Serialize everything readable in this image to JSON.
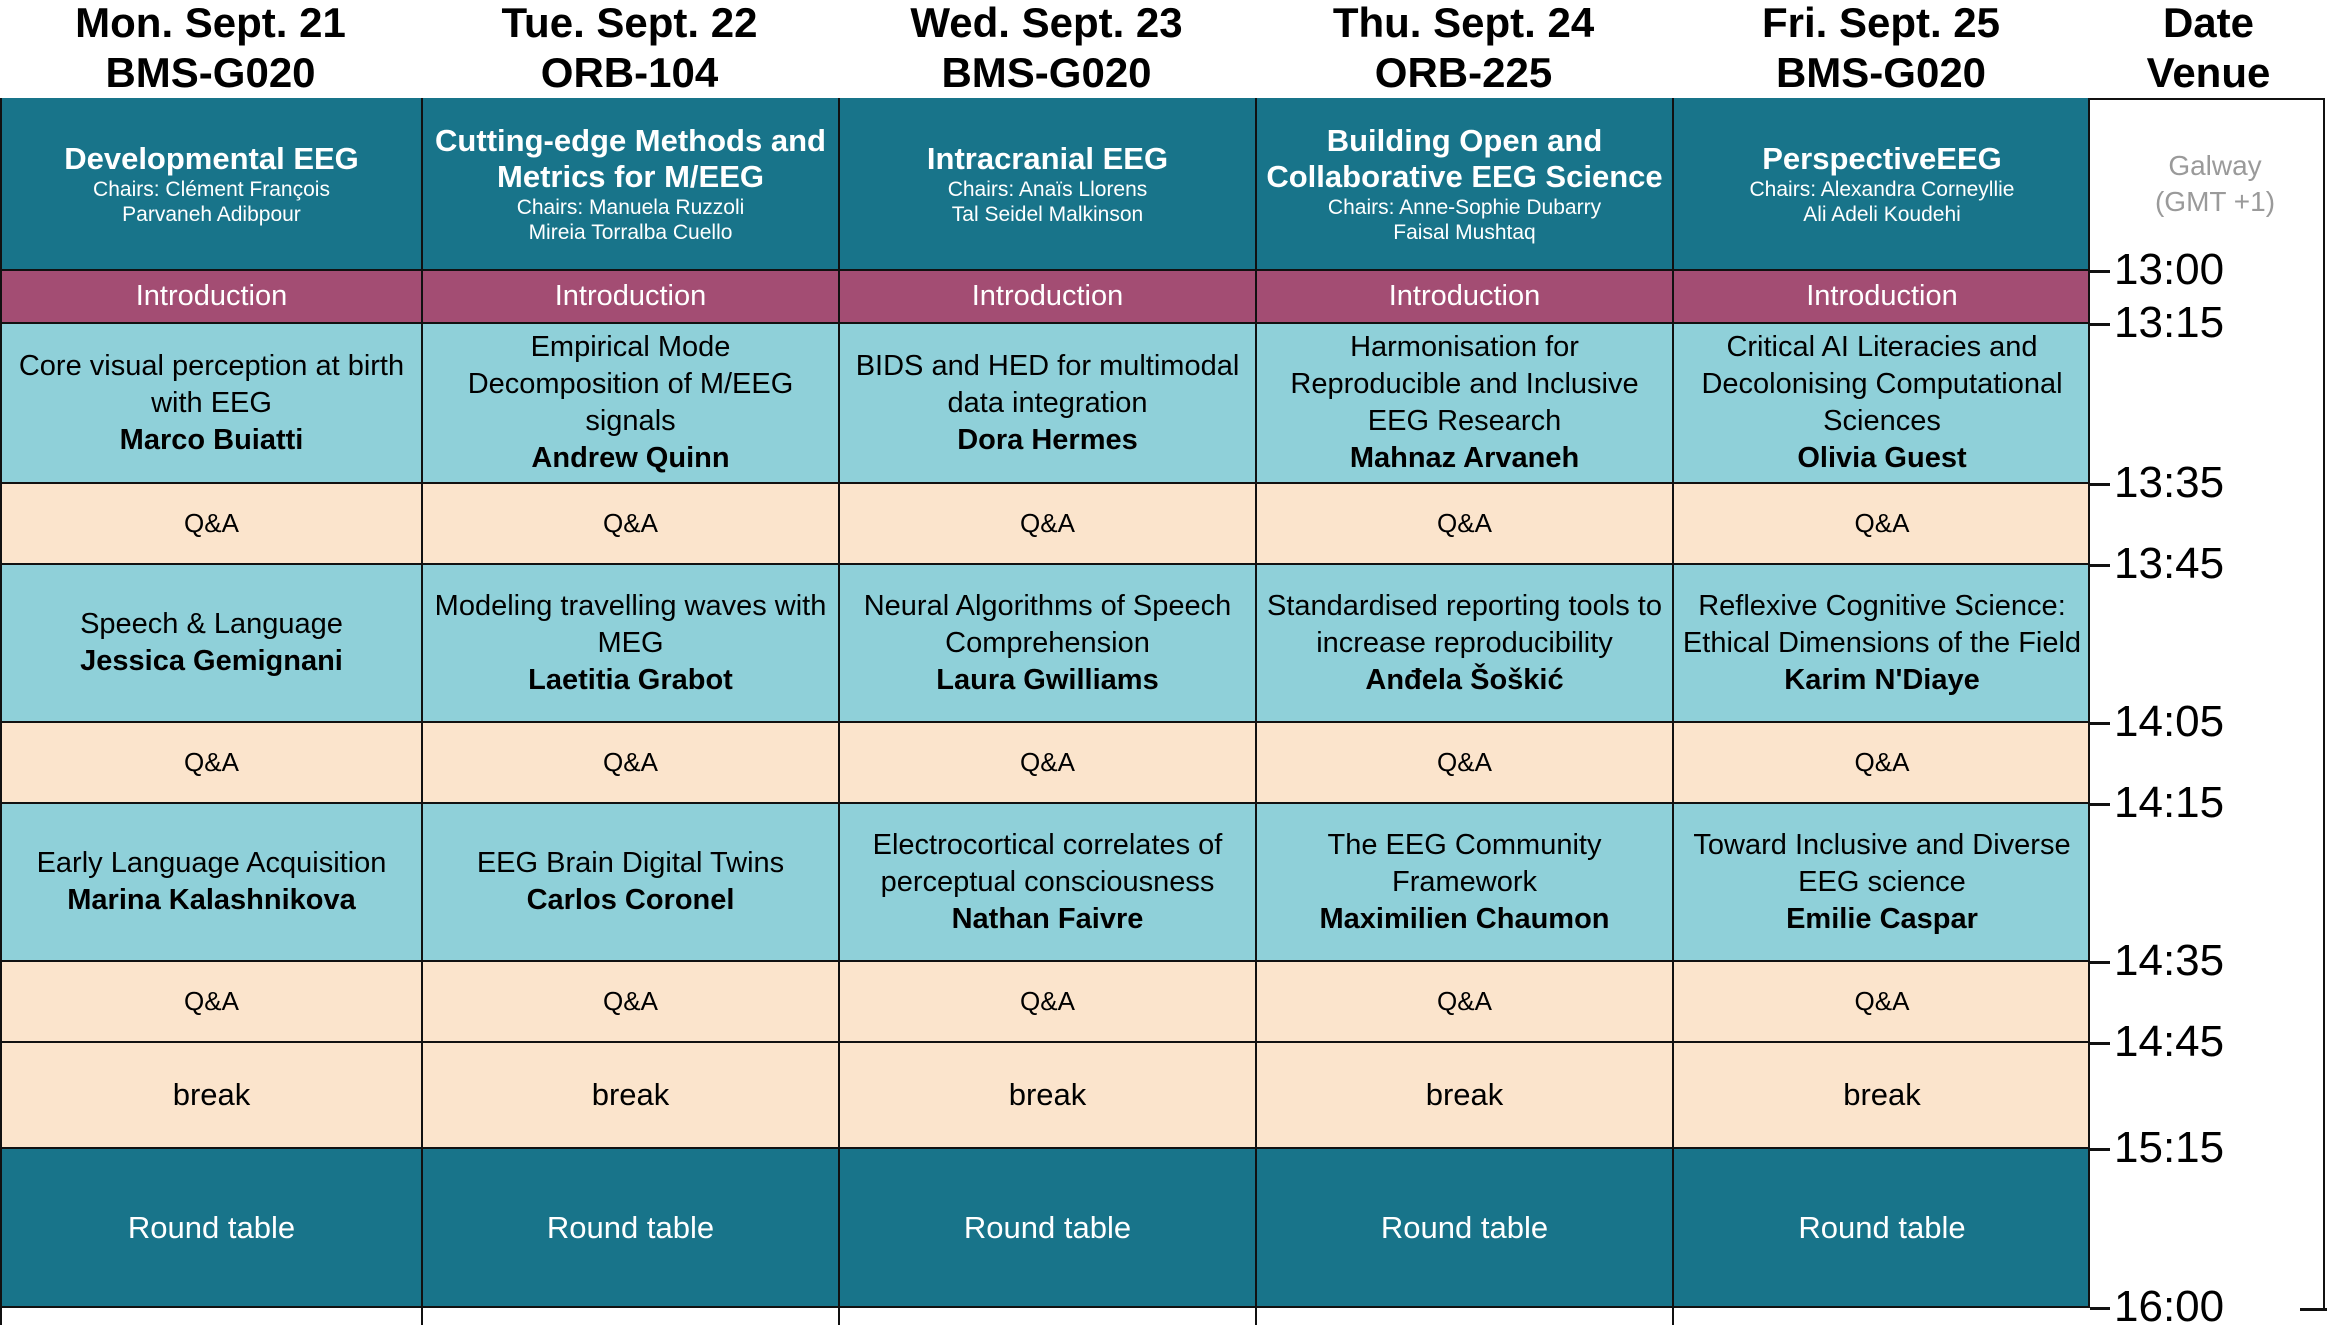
{
  "days": [
    {
      "day": "Mon. Sept. 21",
      "venue": "BMS-G020",
      "session": {
        "title": "Developmental EEG",
        "chairs_label": "Chairs: Clément François",
        "chairs2": "Parvaneh Adibpour"
      },
      "intro": "Introduction",
      "talks": [
        {
          "title": "Core visual perception at birth with EEG",
          "speaker": "Marco Buiatti"
        },
        {
          "title": "Speech & Language",
          "speaker": "Jessica Gemignani"
        },
        {
          "title": "Early Language Acquisition",
          "speaker": "Marina Kalashnikova"
        }
      ],
      "qa": "Q&A",
      "break": "break",
      "roundtable": "Round table"
    },
    {
      "day": "Tue. Sept. 22",
      "venue": "ORB-104",
      "session": {
        "title": "Cutting-edge Methods and Metrics for M/EEG",
        "chairs_label": "Chairs: Manuela Ruzzoli",
        "chairs2": "Mireia Torralba Cuello"
      },
      "intro": "Introduction",
      "talks": [
        {
          "title": "Empirical Mode Decomposition of M/EEG signals",
          "speaker": "Andrew Quinn"
        },
        {
          "title": "Modeling travelling waves with MEG",
          "speaker": "Laetitia Grabot"
        },
        {
          "title": "EEG Brain Digital Twins",
          "speaker": "Carlos Coronel"
        }
      ],
      "qa": "Q&A",
      "break": "break",
      "roundtable": "Round table"
    },
    {
      "day": "Wed. Sept. 23",
      "venue": "BMS-G020",
      "session": {
        "title": "Intracranial EEG",
        "chairs_label": "Chairs: Anaïs Llorens",
        "chairs2": "Tal Seidel Malkinson"
      },
      "intro": "Introduction",
      "talks": [
        {
          "title": "BIDS and HED for multimodal data integration",
          "speaker": "Dora Hermes"
        },
        {
          "title": "Neural Algorithms of Speech Comprehension",
          "speaker": "Laura Gwilliams"
        },
        {
          "title": "Electrocortical correlates of perceptual consciousness",
          "speaker": "Nathan Faivre"
        }
      ],
      "qa": "Q&A",
      "break": "break",
      "roundtable": "Round table"
    },
    {
      "day": "Thu. Sept. 24",
      "venue": "ORB-225",
      "session": {
        "title": "Building Open and Collaborative EEG Science",
        "chairs_label": "Chairs: Anne-Sophie Dubarry",
        "chairs2": "Faisal Mushtaq"
      },
      "intro": "Introduction",
      "talks": [
        {
          "title": "Harmonisation for Reproducible and Inclusive EEG Research",
          "speaker": "Mahnaz Arvaneh"
        },
        {
          "title": "Standardised reporting tools to increase reproducibility",
          "speaker": "Anđela Šoškić"
        },
        {
          "title": "The EEG Community Framework",
          "speaker": "Maximilien Chaumon"
        }
      ],
      "qa": "Q&A",
      "break": "break",
      "roundtable": "Round table"
    },
    {
      "day": "Fri. Sept. 25",
      "venue": "BMS-G020",
      "session": {
        "title": "PerspectiveEEG",
        "chairs_label": "Chairs: Alexandra Corneyllie",
        "chairs2": "Ali Adeli Koudehi"
      },
      "intro": "Introduction",
      "talks": [
        {
          "title": "Critical AI Literacies and Decolonising Computational Sciences",
          "speaker": "Olivia Guest"
        },
        {
          "title": "Reflexive Cognitive Science: Ethical Dimensions of the Field",
          "speaker": "Karim N'Diaye"
        },
        {
          "title": "Toward Inclusive and Diverse EEG science",
          "speaker": "Emilie Caspar"
        }
      ],
      "qa": "Q&A",
      "break": "break",
      "roundtable": "Round table"
    }
  ],
  "right_header": {
    "line1": "Date",
    "line2": "Venue"
  },
  "timezone": {
    "line1": "Galway",
    "line2": "(GMT +1)"
  },
  "times": [
    "13:00",
    "13:15",
    "13:35",
    "13:45",
    "14:05",
    "14:15",
    "14:35",
    "14:45",
    "15:15",
    "16:00"
  ]
}
